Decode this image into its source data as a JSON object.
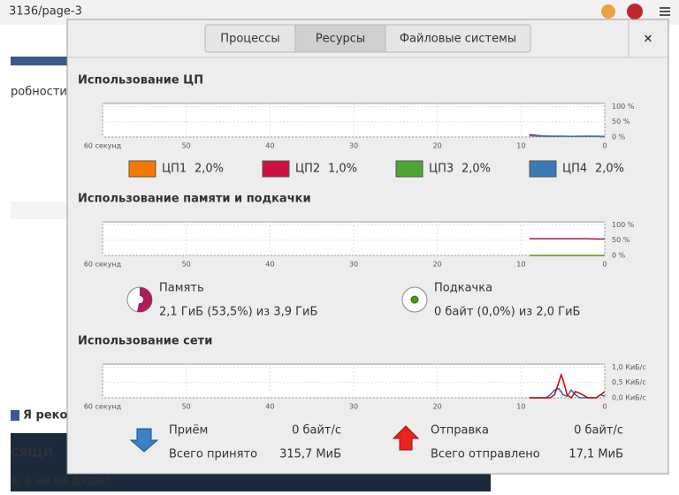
{
  "browser": {
    "url": "3136/page-3",
    "snippets": [
      "робности в с",
      "Я рекоме",
      "СЯЩИ",
      "я, а не на дядю?"
    ]
  },
  "tabs": [
    "Процессы",
    "Ресурсы",
    "Файловые системы"
  ],
  "active_tab": 1,
  "close": "×",
  "chart_data": [
    {
      "type": "line",
      "title": "Использование ЦП",
      "grid": true,
      "xlim": [
        60,
        0
      ],
      "xticks": [
        {
          "value": 60,
          "label": "60 секунд"
        },
        50,
        40,
        30,
        20,
        10,
        0
      ],
      "ylim": [
        0,
        110
      ],
      "yticks": [
        {
          "value": 100,
          "label": "100 %"
        },
        {
          "value": 50,
          "label": "50 %"
        },
        {
          "value": 0,
          "label": "0 %"
        }
      ],
      "series": [
        {
          "name": "ЦП1",
          "legend_value": "2,0%",
          "color": "#f57900",
          "x": [
            9,
            8,
            7,
            6,
            5,
            4,
            3,
            2,
            1,
            0
          ],
          "values": [
            6,
            4,
            3,
            3,
            2,
            2,
            3,
            2,
            2,
            2
          ]
        },
        {
          "name": "ЦП2",
          "legend_value": "1,0%",
          "color": "#cc1040",
          "x": [
            9,
            8,
            7,
            6,
            5,
            4,
            3,
            2,
            1,
            0
          ],
          "values": [
            8,
            5,
            3,
            2,
            2,
            2,
            2,
            3,
            2,
            1
          ]
        },
        {
          "name": "ЦП3",
          "legend_value": "2,0%",
          "color": "#4ea535",
          "x": [
            9,
            8,
            7,
            6,
            5,
            4,
            3,
            2,
            1,
            0
          ],
          "values": [
            4,
            3,
            2,
            3,
            2,
            2,
            2,
            2,
            3,
            2
          ]
        },
        {
          "name": "ЦП4",
          "legend_value": "2,0%",
          "color": "#3a7ab5",
          "x": [
            9,
            8,
            7,
            6,
            5,
            4,
            3,
            2,
            1,
            0
          ],
          "values": [
            5,
            3,
            3,
            2,
            3,
            2,
            2,
            2,
            2,
            2
          ]
        }
      ]
    },
    {
      "type": "line",
      "title": "Использование памяти и подкачки",
      "grid": true,
      "xlim": [
        60,
        0
      ],
      "xticks": [
        {
          "value": 60,
          "label": "60 секунд"
        },
        50,
        40,
        30,
        20,
        10,
        0
      ],
      "ylim": [
        0,
        110
      ],
      "yticks": [
        {
          "value": 100,
          "label": "100 %"
        },
        {
          "value": 50,
          "label": "50 %"
        },
        {
          "value": 0,
          "label": "0 %"
        }
      ],
      "series": [
        {
          "color": "#ad1c5b",
          "x": [
            9,
            8,
            7,
            6,
            5,
            4,
            3,
            2,
            1,
            0
          ],
          "values": [
            55,
            55,
            55,
            55,
            55,
            55,
            55,
            55,
            54,
            54
          ]
        },
        {
          "color": "#4e9a06",
          "x": [
            9,
            8,
            7,
            6,
            5,
            4,
            3,
            2,
            1,
            0
          ],
          "values": [
            0,
            0,
            0,
            0,
            0,
            0,
            0,
            0,
            0,
            0
          ]
        }
      ]
    },
    {
      "type": "line",
      "title": "Использование сети",
      "grid": true,
      "xlim": [
        60,
        0
      ],
      "xticks": [
        {
          "value": 60,
          "label": "60 секунд"
        },
        50,
        40,
        30,
        20,
        10,
        0
      ],
      "ylim": [
        0,
        1.1
      ],
      "yticks": [
        {
          "value": 1.0,
          "label": "1,0 КиБ/с"
        },
        {
          "value": 0.5,
          "label": "0,5 КиБ/с"
        },
        {
          "value": 0,
          "label": "0,0 КиБ/с"
        }
      ],
      "series": [
        {
          "color": "#3465a4",
          "x": [
            9,
            8,
            7,
            6.5,
            6,
            5.5,
            5.2,
            5,
            4.5,
            4,
            3.5,
            3,
            2,
            1,
            0.5,
            0
          ],
          "values": [
            0,
            0,
            0,
            0.1,
            0.25,
            0.3,
            0.2,
            0.1,
            0.05,
            0.25,
            0.1,
            0,
            0,
            0,
            0.1,
            0.05
          ]
        },
        {
          "color": "#cc0000",
          "x": [
            9,
            8,
            7,
            6.5,
            6,
            5.5,
            5.2,
            5,
            4.5,
            4,
            3.5,
            3,
            2,
            1,
            0.5,
            0
          ],
          "values": [
            0,
            0,
            0,
            0,
            0.1,
            0.5,
            0.75,
            0.6,
            0.1,
            0,
            0.2,
            0.15,
            0,
            0,
            0.1,
            0.2
          ]
        }
      ]
    }
  ],
  "memory_summary": [
    {
      "label": "Память",
      "text": "2,1 ГиБ (53,5%) из 3,9 ГиБ",
      "percent": 53.5,
      "color": "#ad1c5b"
    },
    {
      "label": "Подкачка",
      "text": "0 байт (0,0%) из 2,0 ГиБ",
      "percent": 0,
      "color": "#4e9a06"
    }
  ],
  "network_summary": [
    {
      "label": "Приём",
      "rate": "0 байт/с",
      "total_label": "Всего принято",
      "total": "315,7 МиБ"
    },
    {
      "label": "Отправка",
      "rate": "0 байт/с",
      "total_label": "Всего отправлено",
      "total": "17,1 МиБ"
    }
  ]
}
